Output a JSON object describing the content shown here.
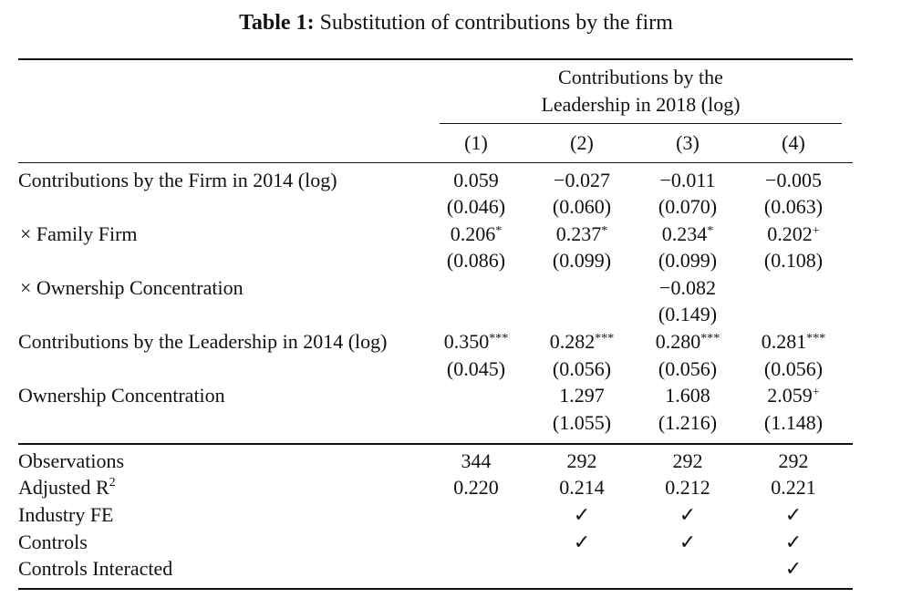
{
  "caption": {
    "label": "Table 1:",
    "text": " Substitution of contributions by the firm"
  },
  "header": {
    "group_line1": "Contributions by the",
    "group_line2": "Leadership in 2018 (log)",
    "columns": [
      "(1)",
      "(2)",
      "(3)",
      "(4)"
    ]
  },
  "rows": [
    {
      "label": "Contributions by the Firm in 2014 (log)",
      "coef": [
        {
          "v": "0.059",
          "s": ""
        },
        {
          "v": "−0.027",
          "s": ""
        },
        {
          "v": "−0.011",
          "s": ""
        },
        {
          "v": "−0.005",
          "s": ""
        }
      ],
      "se": [
        "(0.046)",
        "(0.060)",
        "(0.070)",
        "(0.063)"
      ]
    },
    {
      "label": "× Family Firm",
      "coef": [
        {
          "v": "0.206",
          "s": "*"
        },
        {
          "v": "0.237",
          "s": "*"
        },
        {
          "v": "0.234",
          "s": "*"
        },
        {
          "v": "0.202",
          "s": "+"
        }
      ],
      "se": [
        "(0.086)",
        "(0.099)",
        "(0.099)",
        "(0.108)"
      ]
    },
    {
      "label": "× Ownership Concentration",
      "coef": [
        {
          "v": "",
          "s": ""
        },
        {
          "v": "",
          "s": ""
        },
        {
          "v": "−0.082",
          "s": ""
        },
        {
          "v": "",
          "s": ""
        }
      ],
      "se": [
        "",
        "",
        "(0.149)",
        ""
      ]
    },
    {
      "label": "Contributions by the Leadership in 2014 (log)",
      "coef": [
        {
          "v": "0.350",
          "s": "***"
        },
        {
          "v": "0.282",
          "s": "***"
        },
        {
          "v": "0.280",
          "s": "***"
        },
        {
          "v": "0.281",
          "s": "***"
        }
      ],
      "se": [
        "(0.045)",
        "(0.056)",
        "(0.056)",
        "(0.056)"
      ]
    },
    {
      "label": "Ownership Concentration",
      "coef": [
        {
          "v": "",
          "s": ""
        },
        {
          "v": "1.297",
          "s": ""
        },
        {
          "v": "1.608",
          "s": ""
        },
        {
          "v": "2.059",
          "s": "+"
        }
      ],
      "se": [
        "",
        "(1.055)",
        "(1.216)",
        "(1.148)"
      ]
    }
  ],
  "stats": [
    {
      "label": "Observations",
      "values": [
        "344",
        "292",
        "292",
        "292"
      ]
    },
    {
      "label": "Adjusted R",
      "sup": "2",
      "values": [
        "0.220",
        "0.214",
        "0.212",
        "0.221"
      ]
    },
    {
      "label": "Industry FE",
      "values": [
        "",
        "✓",
        "✓",
        "✓"
      ]
    },
    {
      "label": "Controls",
      "values": [
        "",
        "✓",
        "✓",
        "✓"
      ]
    },
    {
      "label": "Controls Interacted",
      "values": [
        "",
        "",
        "",
        "✓"
      ]
    }
  ]
}
